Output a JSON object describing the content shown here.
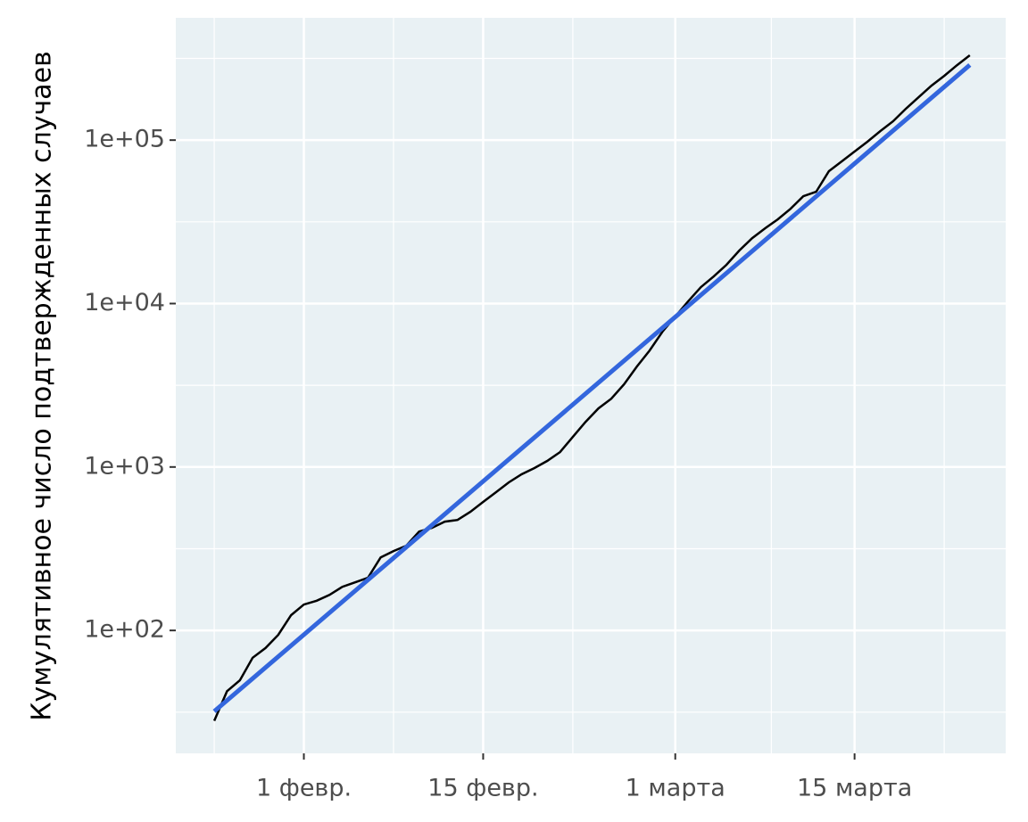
{
  "chart_data": {
    "type": "line",
    "y_label": "Кумулятивное число подтвержденных случаев",
    "log_y": true,
    "grid": true,
    "background": "#e9f1f4",
    "xlim": [
      22,
      86.8
    ],
    "xticks": [
      {
        "value": 32,
        "label": "1 февр."
      },
      {
        "value": 46,
        "label": "15 февр."
      },
      {
        "value": 61,
        "label": "1 марта"
      },
      {
        "value": 75,
        "label": "15 марта"
      }
    ],
    "ylim": [
      17.7,
      560000
    ],
    "yticks": [
      {
        "value": 100,
        "label": "1e+02"
      },
      {
        "value": 1000,
        "label": "1e+03"
      },
      {
        "value": 10000,
        "label": "1e+04"
      },
      {
        "value": 100000,
        "label": "1e+05"
      }
    ],
    "series": [
      {
        "color": "#000000",
        "x": [
          25,
          26,
          27,
          28,
          29,
          30,
          31,
          32,
          33,
          34,
          35,
          36,
          37,
          38,
          39,
          40,
          41,
          42,
          43,
          44,
          45,
          46,
          47,
          48,
          49,
          50,
          51,
          52,
          53,
          54,
          55,
          56,
          57,
          58,
          59,
          60,
          61,
          62,
          63,
          64,
          65,
          66,
          67,
          68,
          69,
          70,
          71,
          72,
          73,
          74,
          75,
          76,
          77,
          78,
          79,
          80,
          81,
          82,
          83,
          84
        ],
        "values": [
          28,
          42.5,
          49.5,
          68,
          78,
          94,
          124,
          144,
          152,
          165,
          185,
          197,
          210,
          280,
          306,
          330,
          403,
          424,
          463,
          474,
          532,
          611,
          701,
          805,
          902,
          985,
          1089,
          1234,
          1527,
          1891,
          2282,
          2618,
          3204,
          4121,
          5166,
          6728,
          8318,
          10300,
          12600,
          14650,
          17260,
          21100,
          25120,
          28840,
          32730,
          38020,
          45350,
          48290,
          64540,
          74130,
          85100,
          97700,
          113500,
          130300,
          155500,
          182900,
          215300,
          247200,
          287500,
          330400
        ]
      },
      {
        "color": "#3366dd",
        "x": [
          25,
          84
        ],
        "values": [
          32,
          288000
        ]
      }
    ]
  }
}
